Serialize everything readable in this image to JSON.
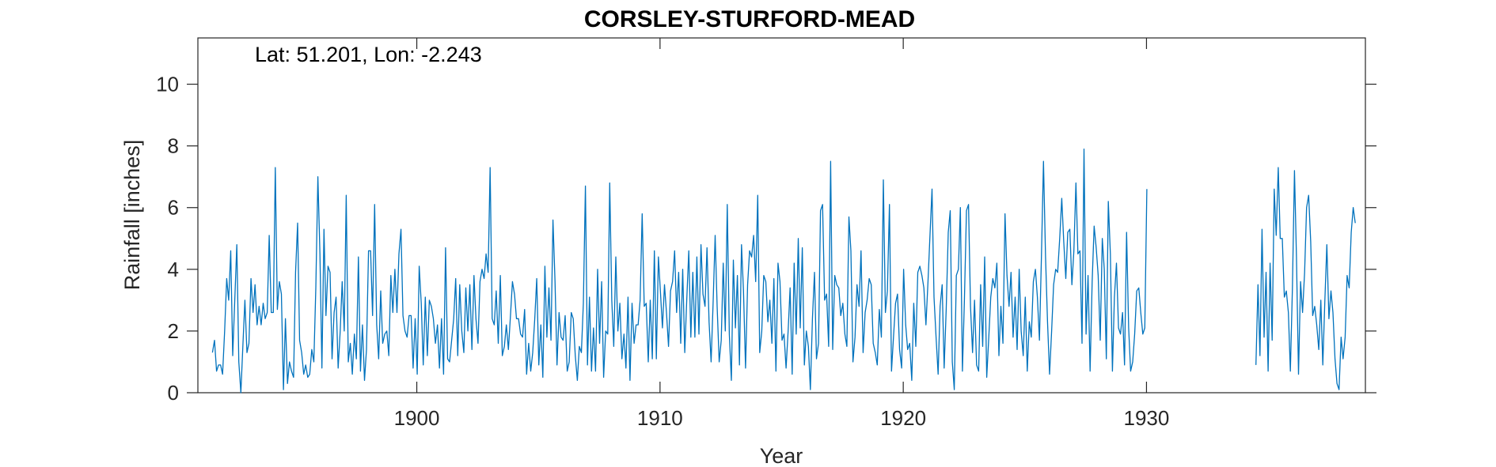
{
  "chart_data": {
    "type": "line",
    "title": "CORSLEY-STURFORD-MEAD",
    "annotation": "Lat: 51.201, Lon: -2.243",
    "xlabel": "Year",
    "ylabel": "Rainfall [inches]",
    "xlim": [
      1891,
      1939
    ],
    "ylim": [
      0,
      11.5
    ],
    "xticks": [
      1900,
      1910,
      1920,
      1930
    ],
    "yticks": [
      0,
      2,
      4,
      6,
      8,
      10
    ],
    "grid": false,
    "line_color": "#0072BD",
    "series": [
      {
        "segments": [
          {
            "start": 1891.6,
            "step": 0.08333,
            "values": [
              1.3,
              1.7,
              0.7,
              0.9,
              0.9,
              0.6,
              2.0,
              3.7,
              3.0,
              4.6,
              1.2,
              3.0,
              4.8,
              1.0,
              0.0,
              1.5,
              3.0,
              1.3,
              1.6,
              3.7,
              2.6,
              3.5,
              2.2,
              2.8,
              2.2,
              2.9,
              2.4,
              2.6,
              5.1,
              2.6,
              2.6,
              7.3,
              2.7,
              3.6,
              3.2,
              0.1,
              2.4,
              0.3,
              1.0,
              0.7,
              0.5,
              3.9,
              5.5,
              1.7,
              1.3,
              0.6,
              0.9,
              0.5,
              0.6,
              1.4,
              1.0,
              3.4,
              7.0,
              4.5,
              0.8,
              5.3,
              2.5,
              4.1,
              3.9,
              1.1,
              2.6,
              3.1,
              0.8,
              2.0,
              3.6,
              2.0,
              6.4,
              1.0,
              1.6,
              0.6,
              1.9,
              1.1,
              4.4,
              0.7,
              2.2,
              0.4,
              1.4,
              4.6,
              4.6,
              2.5,
              6.1,
              2.2,
              1.1,
              3.3,
              1.6,
              1.9,
              2.0,
              1.2,
              3.8,
              2.6,
              4.0,
              2.6,
              4.5,
              5.3,
              2.5,
              2.0,
              1.8,
              2.5,
              2.5,
              0.8,
              2.4,
              0.6,
              4.1,
              2.9,
              0.9,
              3.1,
              1.2,
              3.0,
              2.8,
              2.4,
              1.6,
              2.2,
              0.8,
              2.4,
              0.6,
              4.7,
              1.1,
              1.0,
              1.7,
              2.4,
              3.7,
              1.2,
              3.5,
              2.0,
              1.3,
              3.4,
              2.0,
              3.5,
              1.4,
              3.8,
              2.4,
              1.6,
              3.6,
              4.0,
              3.7,
              4.5,
              3.9,
              7.3,
              2.4,
              2.2,
              3.3,
              1.6,
              3.8,
              1.2,
              1.5,
              2.2,
              1.4,
              2.5,
              3.6,
              3.2,
              2.4,
              2.4,
              1.9,
              1.8,
              2.7,
              0.6,
              1.6,
              0.7,
              1.3,
              2.4,
              3.7,
              0.9,
              2.2,
              0.5,
              4.1,
              1.8,
              3.4,
              1.7,
              5.6,
              3.6,
              0.9,
              2.6,
              1.8,
              1.7,
              2.5,
              0.7,
              1.0,
              2.6,
              2.4,
              1.2,
              0.4,
              1.5,
              1.3,
              2.9,
              6.7,
              0.9,
              3.1,
              0.7,
              2.1,
              0.7,
              4.0,
              1.6,
              3.6,
              0.5,
              2.0,
              1.9,
              6.8,
              3.0,
              1.5,
              4.4,
              2.0,
              2.9,
              1.1,
              1.9,
              0.8,
              3.1,
              0.4,
              2.9,
              1.6,
              2.2,
              2.2,
              3.0,
              5.8,
              2.8,
              2.9,
              1.0,
              3.0,
              1.1,
              4.6,
              1.1,
              4.4,
              3.3,
              2.1,
              3.5,
              2.6,
              1.5,
              3.3,
              3.6,
              4.6,
              2.6,
              3.9,
              1.6,
              4.0,
              1.3,
              3.0,
              4.6,
              1.8,
              3.9,
              1.8,
              4.4,
              1.9,
              4.8,
              3.2,
              2.8,
              4.7,
              2.3,
              1.0,
              2.9,
              5.1,
              2.8,
              1.0,
              1.7,
              4.2,
              2.0,
              6.1,
              1.9,
              0.4,
              4.3,
              2.1,
              3.8,
              0.9,
              4.8,
              3.3,
              0.8,
              3.5,
              4.6,
              4.4,
              5.1,
              3.6,
              6.4,
              1.3,
              2.0,
              3.8,
              3.6,
              2.3,
              3.0,
              1.6,
              3.7,
              0.7,
              4.2,
              3.6,
              1.7,
              1.9,
              0.8,
              2.0,
              3.4,
              0.6,
              4.2,
              1.9,
              5.0,
              2.1,
              4.7,
              0.9,
              2.0,
              1.5,
              0.1,
              2.4,
              3.9,
              1.1,
              1.6,
              5.9,
              6.1,
              3.0,
              3.2,
              1.5,
              7.5,
              1.4,
              3.8,
              3.5,
              3.4,
              2.5,
              2.9,
              1.9,
              1.5,
              5.7,
              4.6,
              1.0,
              1.8,
              3.5,
              2.8,
              4.6,
              1.3,
              2.6,
              3.0,
              3.7,
              3.5,
              1.6,
              1.3,
              0.9,
              2.7,
              1.8,
              6.9,
              2.6,
              3.3,
              6.1,
              0.7,
              1.8,
              2.9,
              3.2,
              1.4,
              0.8,
              4.0,
              2.2,
              1.4,
              1.6,
              0.4,
              2.9,
              1.5,
              3.9,
              4.1,
              3.8,
              3.4,
              2.2,
              3.6,
              5.1,
              6.6,
              3.1,
              1.8,
              0.6,
              2.8,
              3.5,
              0.8,
              2.7,
              5.2,
              5.9,
              1.0,
              0.1,
              3.8,
              4.0,
              6.0,
              0.7,
              3.0,
              5.9,
              6.1,
              2.8,
              1.3,
              3.0,
              0.9,
              0.7,
              3.5,
              1.5,
              4.4,
              0.5,
              1.8,
              3.1,
              3.7,
              3.4,
              4.2,
              1.2,
              2.8,
              1.6,
              5.8,
              3.8,
              2.8,
              3.9,
              1.8,
              3.1,
              1.4,
              4.0,
              2.0,
              1.2,
              3.1,
              0.7,
              2.3,
              1.8,
              3.6,
              4.0,
              3.1,
              1.7,
              4.4,
              7.5,
              4.4,
              2.3,
              0.6,
              2.0,
              3.5,
              4.0,
              3.9,
              5.0,
              6.3,
              4.9,
              3.7,
              5.2,
              5.3,
              3.5,
              4.6,
              6.8,
              4.5,
              4.6,
              1.6,
              7.9,
              1.9,
              3.8,
              0.7,
              3.6,
              5.4,
              4.7,
              3.8,
              1.7,
              5.0,
              4.0,
              1.1,
              6.2,
              4.5,
              0.7,
              3.1,
              4.2,
              2.1,
              1.9,
              2.6,
              0.9,
              5.2,
              2.1,
              0.7,
              1.0,
              1.9,
              3.3,
              3.4,
              2.6,
              1.9,
              2.1,
              6.6
            ]
          },
          {
            "start": 1934.5,
            "step": 0.08333,
            "values": [
              0.9,
              3.5,
              1.2,
              5.3,
              1.8,
              3.9,
              0.7,
              4.2,
              1.7,
              6.6,
              5.1,
              7.3,
              5.0,
              5.0,
              3.1,
              3.3,
              2.6,
              0.7,
              3.4,
              7.2,
              4.4,
              0.6,
              3.6,
              2.6,
              3.9,
              6.0,
              6.4,
              4.9,
              2.5,
              2.8,
              2.2,
              1.4,
              3.0,
              0.9,
              3.0,
              4.8,
              2.4,
              3.3,
              2.6,
              1.1,
              0.3,
              0.1,
              1.8,
              1.1,
              1.8,
              3.8,
              3.4,
              5.2,
              6.0,
              5.5
            ]
          }
        ]
      }
    ]
  }
}
